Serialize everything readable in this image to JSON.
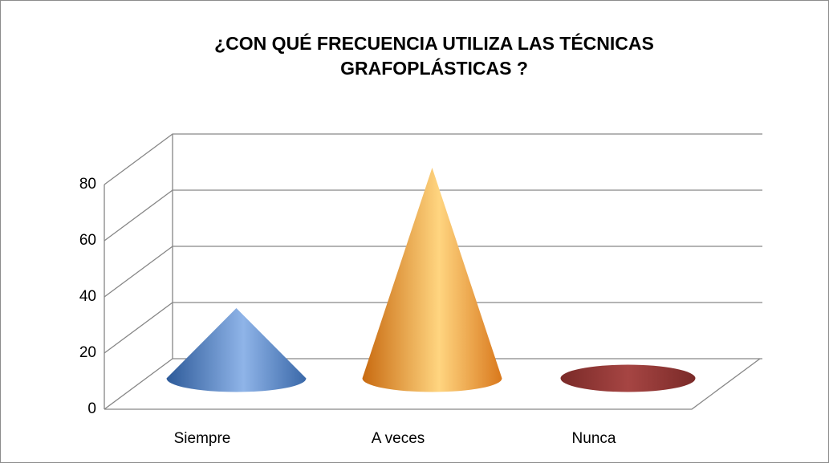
{
  "chart_data": {
    "type": "cone3d",
    "title": [
      "¿CON QUÉ FRECUENCIA UTILIZA LAS TÉCNICAS",
      "GRAFOPLÁSTICAS ?"
    ],
    "categories": [
      "Siempre",
      "A veces",
      "Nunca"
    ],
    "values": [
      25,
      75,
      0
    ],
    "colors": [
      "#4f81bd",
      "#f79646",
      "#953735"
    ],
    "ylim": [
      0,
      80
    ],
    "yticks": [
      0,
      20,
      40,
      60,
      80
    ],
    "grid": true
  }
}
